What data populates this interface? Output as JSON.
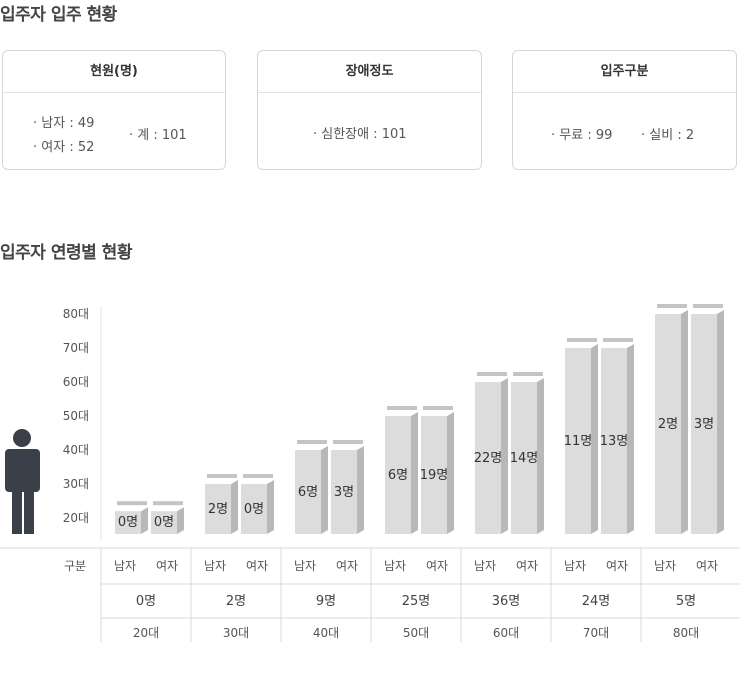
{
  "section1": {
    "title": "입주자 입주 현황"
  },
  "cards": {
    "staff": {
      "title": "현원(명)",
      "male": "남자 : 49",
      "female": "여자 : 52",
      "total": "계 :  101"
    },
    "disability": {
      "title": "장애정도",
      "severe": "심한장애 : 101"
    },
    "type": {
      "title": "입주구분",
      "free": "무료 :  99",
      "paid": "실비 : 2"
    }
  },
  "section2": {
    "title": "입주자 연령별 현황"
  },
  "chart_data": {
    "type": "bar",
    "ylabel": "",
    "xlabel": "",
    "y_tick_labels": [
      "20대",
      "30대",
      "40대",
      "50대",
      "60대",
      "70대",
      "80대"
    ],
    "ylim": [
      15,
      80
    ],
    "categories": [
      "20대",
      "30대",
      "40대",
      "50대",
      "60대",
      "70대",
      "80대"
    ],
    "series": [
      {
        "name": "남자",
        "labels": [
          "0명",
          "2명",
          "6명",
          "6명",
          "22명",
          "11명",
          "2명"
        ]
      },
      {
        "name": "여자",
        "labels": [
          "0명",
          "0명",
          "3명",
          "19명",
          "14명",
          "13명",
          "3명"
        ]
      }
    ],
    "bar_tops": [
      22,
      30,
      40,
      50,
      60,
      70,
      80
    ],
    "totals": [
      "0명",
      "2명",
      "9명",
      "25명",
      "36명",
      "24명",
      "5명"
    ],
    "table": {
      "row_header": "구분",
      "male_label": "남자",
      "female_label": "여자"
    },
    "colors": {
      "bar_front": "#dcdcdc",
      "bar_side": "#b8b8b8",
      "bar_top": "#c4c4c4",
      "person": "#3b3f4a"
    }
  }
}
